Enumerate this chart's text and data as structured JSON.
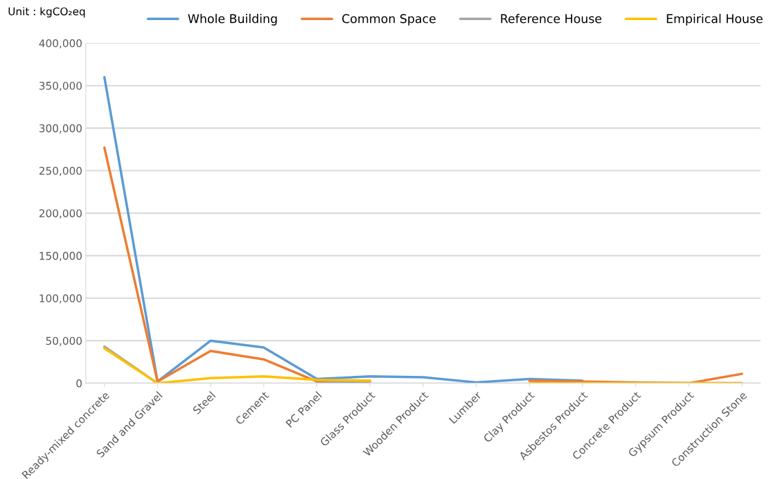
{
  "chart_data": {
    "type": "line",
    "categories": [
      "Ready-mixed concrete",
      "Sand and Gravel",
      "Steel",
      "Cement",
      "PC Panel",
      "Glass Product",
      "Wooden Product",
      "Lumber",
      "Clay Product",
      "Asbestos Product",
      "Concrete Product",
      "Gypsum Product",
      "Construction Stone"
    ],
    "series": [
      {
        "name": "Whole Building",
        "color": "#5b9bd5",
        "values": [
          360000,
          2000,
          50000,
          42000,
          5000,
          8000,
          7000,
          1000,
          5000,
          3000,
          null,
          null,
          null
        ]
      },
      {
        "name": "Common Space",
        "color": "#ed7d31",
        "values": [
          277000,
          2000,
          38000,
          28000,
          2000,
          3000,
          null,
          null,
          3000,
          2000,
          1000,
          0,
          11000
        ]
      },
      {
        "name": "Reference House",
        "color": "#a5a5a5",
        "values": [
          43000,
          0,
          null,
          null,
          0,
          2000,
          null,
          null,
          null,
          null,
          0,
          0,
          0
        ]
      },
      {
        "name": "Empirical House",
        "color": "#ffc000",
        "values": [
          41000,
          0,
          6000,
          8000,
          4000,
          3000,
          null,
          null,
          0,
          0,
          0,
          0,
          0
        ]
      }
    ],
    "ylim": [
      0,
      400000
    ],
    "yticks": [
      0,
      {
        "value": 50000,
        "label": "50,000"
      },
      {
        "value": 100000,
        "label": "100,000"
      },
      {
        "value": 150000,
        "label": "150,000"
      },
      {
        "value": 200000,
        "label": "200,000"
      },
      {
        "value": 250000,
        "label": "250,000"
      },
      {
        "value": 300000,
        "label": "300,000"
      },
      {
        "value": 350000,
        "label": "350,000"
      },
      {
        "value": 400000,
        "label": "400,000"
      }
    ],
    "grid": "y",
    "legend": "top right",
    "marker": "none",
    "line_style": "solid",
    "annotations": [
      "Unit : kgCO₂eq"
    ]
  }
}
